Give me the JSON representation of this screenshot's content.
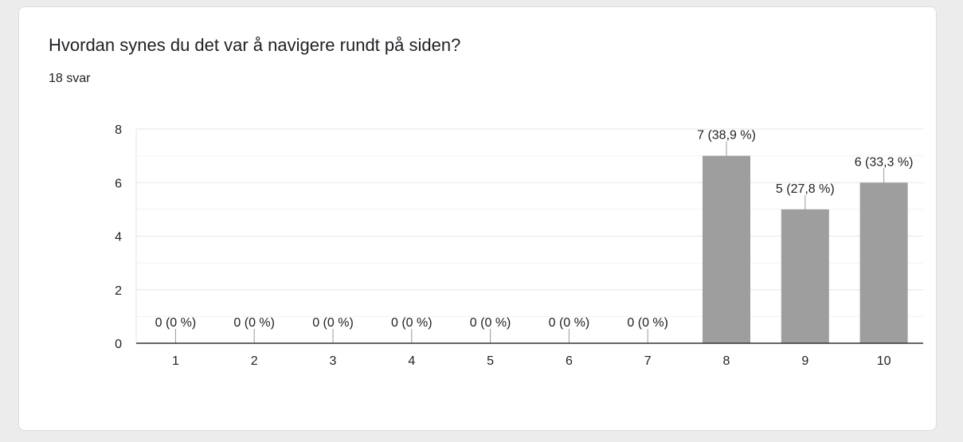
{
  "question": "Hvordan synes du det var å navigere rundt på siden?",
  "response_count": "18 svar",
  "colors": {
    "bar": "#9e9e9e",
    "grid": "#e6e6e6",
    "axis": "#333333"
  },
  "chart_data": {
    "type": "bar",
    "title": "Hvordan synes du det var å navigere rundt på siden?",
    "xlabel": "",
    "ylabel": "",
    "categories": [
      "1",
      "2",
      "3",
      "4",
      "5",
      "6",
      "7",
      "8",
      "9",
      "10"
    ],
    "values": [
      0,
      0,
      0,
      0,
      0,
      0,
      0,
      7,
      5,
      6
    ],
    "data_labels": [
      "0 (0 %)",
      "0 (0 %)",
      "0 (0 %)",
      "0 (0 %)",
      "0 (0 %)",
      "0 (0 %)",
      "0 (0 %)",
      "7 (38,9 %)",
      "5 (27,8 %)",
      "6 (33,3 %)"
    ],
    "y_ticks": [
      0,
      2,
      4,
      6,
      8
    ],
    "ylim": [
      0,
      8
    ],
    "grid": true,
    "legend": "none"
  }
}
